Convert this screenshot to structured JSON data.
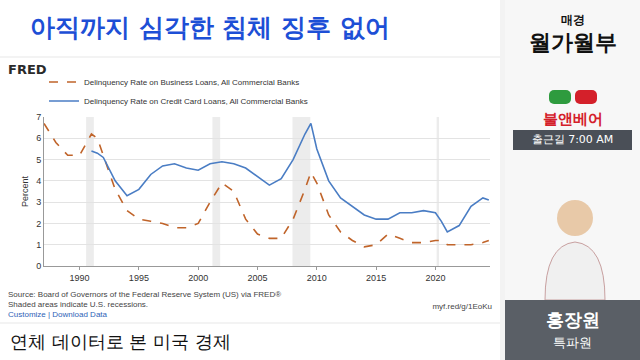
{
  "header": {
    "title": "아직까지 심각한 침체 징후 없어"
  },
  "chart_data": {
    "type": "line",
    "logo": "FRED",
    "y_label": "Percent",
    "x": [
      1987,
      1988,
      1989,
      1990,
      1991,
      1991.5,
      1992,
      1993,
      1994,
      1995,
      1996,
      1997,
      1998,
      1999,
      2000,
      2001,
      2002,
      2003,
      2004,
      2005,
      2006,
      2007,
      2008,
      2009,
      2009.5,
      2010,
      2011,
      2012,
      2013,
      2014,
      2015,
      2016,
      2017,
      2018,
      2019,
      2020,
      2020.5,
      2021,
      2022,
      2023,
      2024,
      2024.5
    ],
    "series": [
      {
        "name": "Delinquency Rate on Business Loans, All Commercial Banks",
        "color": "#c0642a",
        "line_style": "dashed",
        "values": [
          6.7,
          5.8,
          5.2,
          5.2,
          6.2,
          6.0,
          5.2,
          3.6,
          2.6,
          2.2,
          2.1,
          2.0,
          1.8,
          1.8,
          2.0,
          3.0,
          3.9,
          3.5,
          2.2,
          1.5,
          1.3,
          1.3,
          2.2,
          3.6,
          4.4,
          3.9,
          2.4,
          1.6,
          1.2,
          0.9,
          1.0,
          1.5,
          1.3,
          1.1,
          1.1,
          1.2,
          1.2,
          1.0,
          1.0,
          1.0,
          1.1,
          1.2
        ]
      },
      {
        "name": "Delinquency Rate on Credit Card Loans, All Commercial Banks",
        "color": "#4a7dc4",
        "line_style": "solid",
        "values": [
          null,
          null,
          null,
          null,
          5.4,
          5.3,
          5.1,
          4.0,
          3.3,
          3.6,
          4.3,
          4.7,
          4.8,
          4.6,
          4.5,
          4.8,
          4.9,
          4.8,
          4.6,
          4.2,
          3.8,
          4.1,
          5.0,
          6.2,
          6.7,
          5.5,
          4.0,
          3.2,
          2.8,
          2.4,
          2.2,
          2.2,
          2.5,
          2.5,
          2.6,
          2.5,
          2.1,
          1.6,
          1.9,
          2.8,
          3.2,
          3.1
        ]
      }
    ],
    "recessions": [
      [
        1990.55,
        1991.2
      ],
      [
        2001.2,
        2001.85
      ],
      [
        2007.95,
        2009.45
      ],
      [
        2020.1,
        2020.3
      ]
    ],
    "xlim": [
      1987,
      2024.6
    ],
    "xticks": [
      1990,
      1995,
      2000,
      2005,
      2010,
      2015,
      2020
    ],
    "ylim": [
      0,
      7
    ],
    "yticks": [
      0,
      1,
      2,
      3,
      4,
      5,
      6,
      7
    ],
    "grid": true,
    "legend": "top-left"
  },
  "chart_footer": {
    "source": "Source: Board of Governors of the Federal Reserve System (US) via FRED®",
    "recession_note": "Shaded areas indicate U.S. recessions.",
    "links": "Customize | Download Data",
    "short_url": "myf.red/g/1EoKu"
  },
  "caption": "연체 데이터로 본 미국 경제",
  "side_panel": {
    "brand_top": "매경",
    "brand_main": "월가월부",
    "program": "불앤베어",
    "time": "출근길 7:00 AM",
    "name": "홍장원",
    "role": "특파원"
  }
}
